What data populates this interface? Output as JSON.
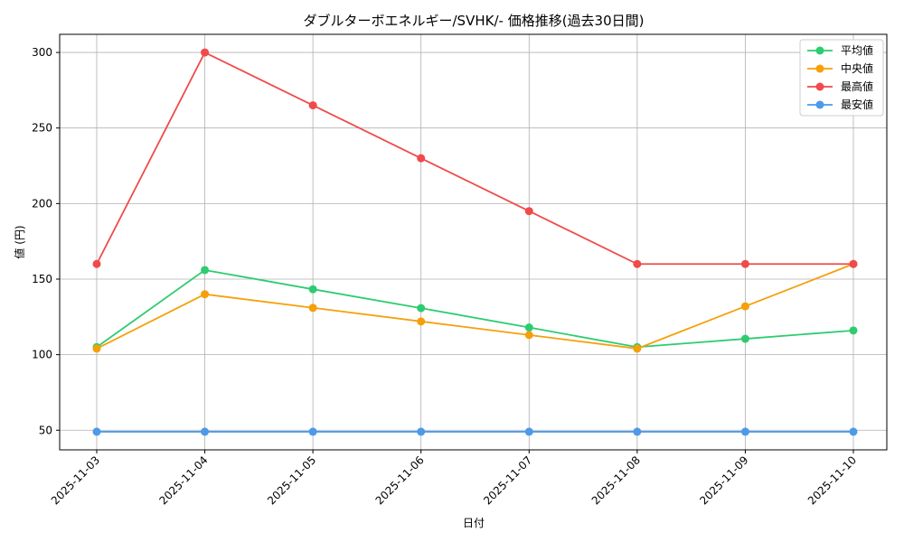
{
  "chart_data": {
    "type": "line",
    "title": "ダブルターボエネルギー/SVHK/- 価格推移(過去30日間)",
    "xlabel": "日付",
    "ylabel": "値 (円)",
    "categories": [
      "2025-11-03",
      "2025-11-04",
      "2025-11-05",
      "2025-11-06",
      "2025-11-07",
      "2025-11-08",
      "2025-11-09",
      "2025-11-10"
    ],
    "ylim": [
      37,
      312
    ],
    "yticks": [
      50,
      100,
      150,
      200,
      250,
      300
    ],
    "grid": true,
    "legend_position": "top-right",
    "series": [
      {
        "name": "平均値",
        "color": "#2ecc71",
        "values": [
          105,
          156,
          143.3,
          130.8,
          118,
          105,
          110.5,
          116
        ]
      },
      {
        "name": "中央値",
        "color": "#f5a00a",
        "values": [
          104,
          140,
          131,
          122,
          113,
          104,
          132,
          160
        ]
      },
      {
        "name": "最高値",
        "color": "#f04a4a",
        "values": [
          160,
          300,
          265,
          230,
          195,
          160,
          160,
          160
        ]
      },
      {
        "name": "最安値",
        "color": "#4c9ae8",
        "values": [
          49,
          49,
          49,
          49,
          49,
          49,
          49,
          49
        ]
      }
    ]
  }
}
